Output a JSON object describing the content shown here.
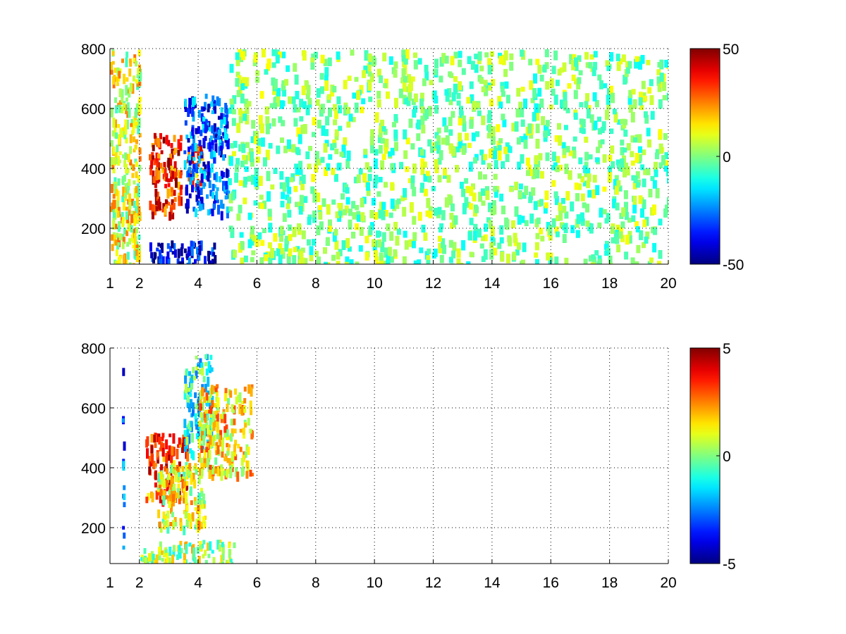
{
  "chart_data": [
    {
      "type": "heatmap",
      "title": "",
      "xlabel": "",
      "ylabel": "",
      "xlim": [
        1,
        20
      ],
      "ylim": [
        80,
        800
      ],
      "x_ticks": [
        1,
        2,
        4,
        6,
        8,
        10,
        12,
        14,
        16,
        18,
        20
      ],
      "x_tick_labels": [
        "1",
        "2",
        "4",
        "6",
        "8",
        "10",
        "12",
        "14",
        "16",
        "18",
        "20"
      ],
      "y_ticks": [
        200,
        400,
        600,
        800
      ],
      "y_tick_labels": [
        "200",
        "400",
        "600",
        "800"
      ],
      "grid": true,
      "colormap": "jet",
      "clim": [
        -50,
        50
      ],
      "colorbar": {
        "ticks": [
          50,
          0,
          -50
        ],
        "tick_labels": [
          "50",
          "0",
          "-50"
        ]
      },
      "features": [
        {
          "x": [
            2.3,
            3.4
          ],
          "y": [
            250,
            520
          ],
          "value": 35,
          "description": "positive band"
        },
        {
          "x": [
            3.6,
            4.2
          ],
          "y": [
            350,
            480
          ],
          "value": 30
        },
        {
          "x": [
            3.5,
            5.0
          ],
          "y": [
            250,
            650
          ],
          "value": -30,
          "description": "negative band"
        },
        {
          "x": [
            2.3,
            4.6
          ],
          "y": [
            80,
            160
          ],
          "value": -40
        },
        {
          "x": [
            1.0,
            2.0
          ],
          "y": [
            80,
            800
          ],
          "value": 10
        },
        {
          "x": [
            5.0,
            20.0
          ],
          "y": [
            80,
            800
          ],
          "value": 0,
          "description": "sparse near-zero noise"
        }
      ]
    },
    {
      "type": "heatmap",
      "title": "",
      "xlabel": "",
      "ylabel": "",
      "xlim": [
        1,
        20
      ],
      "ylim": [
        80,
        800
      ],
      "x_ticks": [
        1,
        2,
        4,
        6,
        8,
        10,
        12,
        14,
        16,
        18,
        20
      ],
      "x_tick_labels": [
        "1",
        "2",
        "4",
        "6",
        "8",
        "10",
        "12",
        "14",
        "16",
        "18",
        "20"
      ],
      "y_ticks": [
        200,
        400,
        600,
        800
      ],
      "y_tick_labels": [
        "200",
        "400",
        "600",
        "800"
      ],
      "grid": true,
      "colormap": "jet",
      "clim": [
        -5,
        5
      ],
      "colorbar": {
        "ticks": [
          5,
          0,
          -5
        ],
        "tick_labels": [
          "5",
          "0",
          "-5"
        ]
      },
      "features": [
        {
          "x": [
            2.2,
            3.6
          ],
          "y": [
            300,
            520
          ],
          "value": 3
        },
        {
          "x": [
            2.6,
            4.2
          ],
          "y": [
            200,
            420
          ],
          "value": 1
        },
        {
          "x": [
            3.5,
            4.5
          ],
          "y": [
            450,
            780
          ],
          "value": -1
        },
        {
          "x": [
            4.0,
            5.8
          ],
          "y": [
            380,
            680
          ],
          "value": 1.5
        },
        {
          "x": [
            2.0,
            5.2
          ],
          "y": [
            80,
            160
          ],
          "value": 0.5
        },
        {
          "x": [
            1.4,
            1.45
          ],
          "y": [
            100,
            760
          ],
          "value": -3
        }
      ]
    }
  ]
}
